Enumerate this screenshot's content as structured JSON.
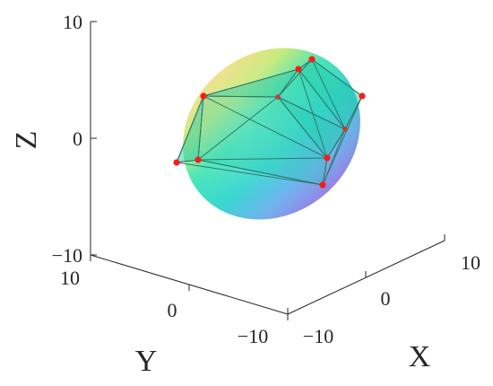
{
  "chart_data": {
    "type": "scatter",
    "projection": "3d",
    "xlabel": "X",
    "ylabel": "Y",
    "zlabel": "Z",
    "xlim": [
      -10,
      10
    ],
    "ylim": [
      -10,
      10
    ],
    "zlim": [
      -10,
      10
    ],
    "xticks": [
      "−10",
      "0",
      "10"
    ],
    "yticks": [
      "−10",
      "0",
      "10"
    ],
    "zticks": [
      "−10",
      "0",
      "10"
    ],
    "grid": false,
    "surface": "ellipsoid",
    "surface_colormap": [
      "#9a86f0",
      "#6fb0f0",
      "#3fd8cf",
      "#2fe3b0",
      "#b8e87a",
      "#f0e08a"
    ],
    "hull_edge_color": "#2d7a6a",
    "point_color": "#ff1a1a"
  }
}
